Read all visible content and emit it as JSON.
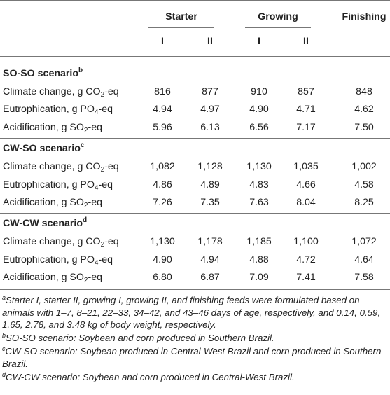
{
  "header": {
    "groups": [
      "Starter",
      "Growing",
      "Finishing"
    ],
    "sub_labels": [
      "I",
      "II",
      "I",
      "II"
    ]
  },
  "sections": [
    {
      "title": "SO-SO scenario",
      "title_sup": "b",
      "rows": [
        {
          "label": "Climate change, g CO",
          "sub": "2",
          "suffix": "-eq",
          "values": [
            "816",
            "877",
            "910",
            "857",
            "848"
          ]
        },
        {
          "label": "Eutrophication, g PO",
          "sub": "4",
          "suffix": "-eq",
          "values": [
            "4.94",
            "4.97",
            "4.90",
            "4.71",
            "4.62"
          ]
        },
        {
          "label": "Acidification, g SO",
          "sub": "2",
          "suffix": "-eq",
          "values": [
            "5.96",
            "6.13",
            "6.56",
            "7.17",
            "7.50"
          ]
        }
      ]
    },
    {
      "title": "CW-SO scenario",
      "title_sup": "c",
      "rows": [
        {
          "label": "Climate change, g CO",
          "sub": "2",
          "suffix": "-eq",
          "values": [
            "1,082",
            "1,128",
            "1,130",
            "1,035",
            "1,002"
          ]
        },
        {
          "label": "Eutrophication, g PO",
          "sub": "4",
          "suffix": "-eq",
          "values": [
            "4.86",
            "4.89",
            "4.83",
            "4.66",
            "4.58"
          ]
        },
        {
          "label": "Acidification, g SO",
          "sub": "2",
          "suffix": "-eq",
          "values": [
            "7.26",
            "7.35",
            "7.63",
            "8.04",
            "8.25"
          ]
        }
      ]
    },
    {
      "title": "CW-CW scenario",
      "title_sup": "d",
      "rows": [
        {
          "label": "Climate change, g CO",
          "sub": "2",
          "suffix": "-eq",
          "values": [
            "1,130",
            "1,178",
            "1,185",
            "1,100",
            "1,072"
          ]
        },
        {
          "label": "Eutrophication, g PO",
          "sub": "4",
          "suffix": "-eq",
          "values": [
            "4.90",
            "4.94",
            "4.88",
            "4.72",
            "4.64"
          ]
        },
        {
          "label": "Acidification, g SO",
          "sub": "2",
          "suffix": "-eq",
          "values": [
            "6.80",
            "6.87",
            "7.09",
            "7.41",
            "7.58"
          ]
        }
      ]
    }
  ],
  "footnotes": [
    {
      "sup": "a",
      "text": "Starter I, starter II, growing I, growing II, and finishing feeds were formulated based on animals with 1–7, 8–21, 22–33, 34–42, and 43–46 days of age, respectively, and 0.14, 0.59, 1.65, 2.78, and 3.48 kg of body weight, respectively."
    },
    {
      "sup": "b",
      "text": "SO-SO scenario: Soybean and corn produced in Southern Brazil."
    },
    {
      "sup": "c",
      "text": "CW-SO scenario: Soybean produced in Central-West Brazil and corn produced in Southern Brazil."
    },
    {
      "sup": "d",
      "text": "CW-CW scenario: Soybean and corn produced in Central-West Brazil."
    }
  ]
}
